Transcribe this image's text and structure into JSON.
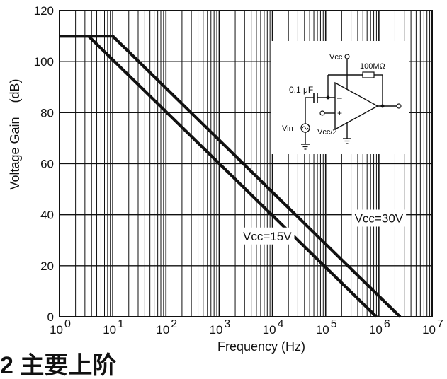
{
  "chart_data": {
    "type": "line",
    "title": "",
    "xlabel": "Frequency (Hz)",
    "ylabel": "Voltage Gain    (dB)",
    "xscale": "log",
    "xlim": [
      1,
      10000000
    ],
    "ylim": [
      0,
      120
    ],
    "grid": true,
    "x_tick_labels": [
      {
        "base": "10",
        "exp": "0",
        "value": 1
      },
      {
        "base": "10",
        "exp": "1",
        "value": 10
      },
      {
        "base": "10",
        "exp": "2",
        "value": 100
      },
      {
        "base": "10",
        "exp": "3",
        "value": 1000
      },
      {
        "base": "10",
        "exp": "4",
        "value": 10000
      },
      {
        "base": "10",
        "exp": "5",
        "value": 100000
      },
      {
        "base": "10",
        "exp": "6",
        "value": 1000000
      },
      {
        "base": "10",
        "exp": "7",
        "value": 10000000
      }
    ],
    "y_ticks": [
      0,
      20,
      40,
      60,
      80,
      100,
      120
    ],
    "series": [
      {
        "name": "Vcc=30V",
        "x": [
          1,
          10,
          2500000
        ],
        "y": [
          110,
          110,
          0
        ]
      },
      {
        "name": "Vcc=15V",
        "x": [
          1,
          3.5,
          900000
        ],
        "y": [
          110,
          110,
          0
        ]
      }
    ],
    "annotations": [
      {
        "text": "Vcc=15V",
        "x": 8000,
        "y": 30
      },
      {
        "text": "Vcc=30V",
        "x": 1000000,
        "y": 37
      }
    ],
    "inset": {
      "vcc_label": "Vcc",
      "resistor_label": "100MΩ",
      "cap_label": "0.1 μF",
      "minus_label": "–",
      "plus_label": "+",
      "vin_label": "Vin",
      "bias_label": "Vcc/2"
    }
  },
  "caption": {
    "text": "2     主要上阶"
  }
}
